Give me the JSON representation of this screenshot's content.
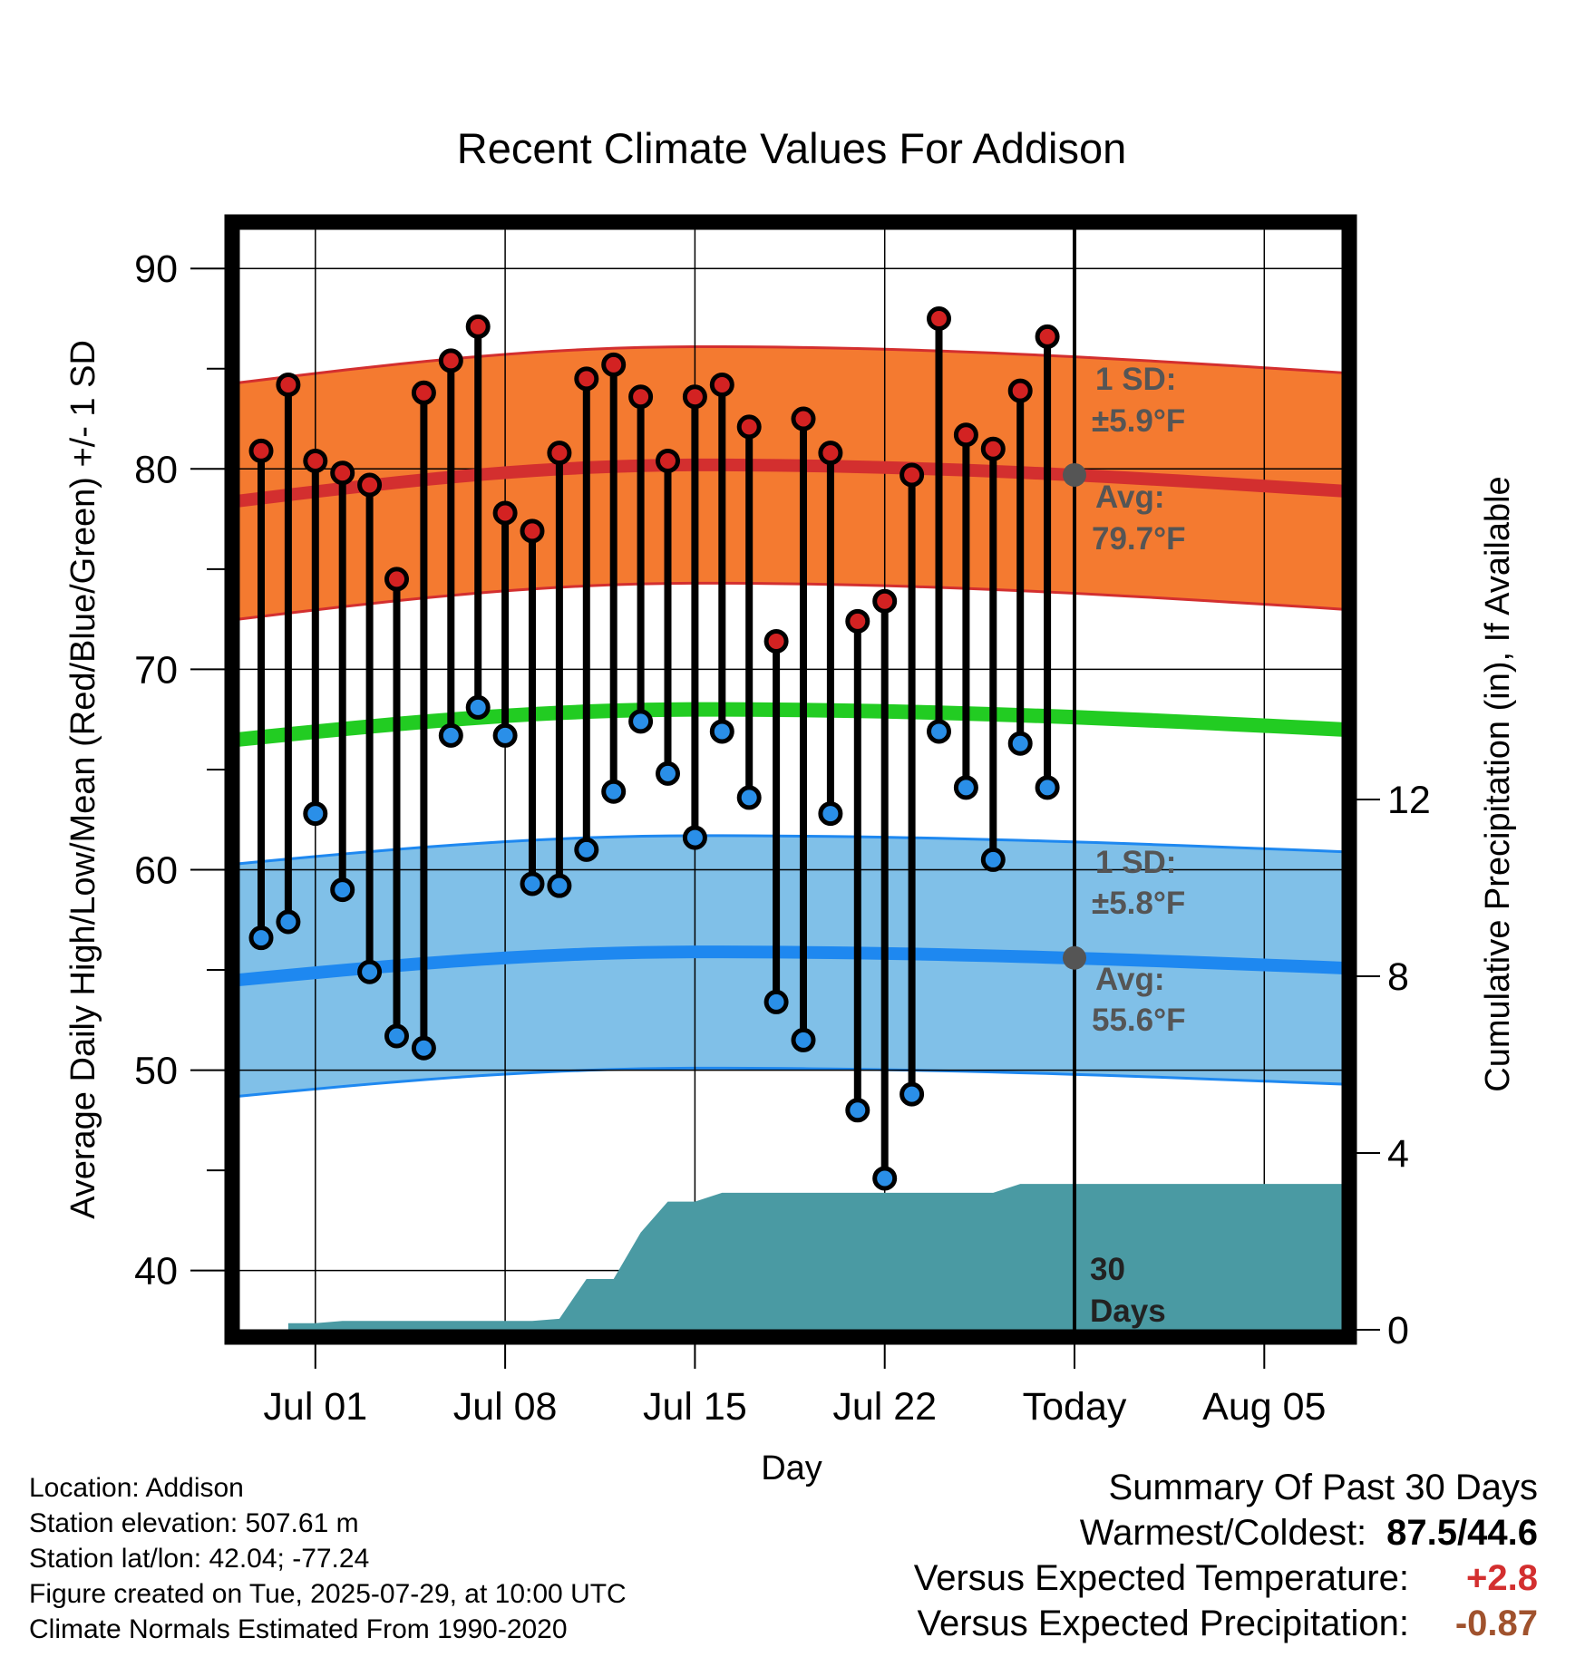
{
  "chart_data": {
    "type": "line",
    "title": "Recent Climate Values For Addison",
    "xlabel": "Day",
    "ylabel": "Average Daily High/Low/Mean (Red/Blue/Green) +/- 1 SD",
    "y2label": "Cumulative Precipitation (in), If Available",
    "x_ticks": [
      "Jul 01",
      "Jul 08",
      "Jul 15",
      "Jul 22",
      "Today",
      "Aug 05"
    ],
    "ylim": [
      37,
      92
    ],
    "yticks": [
      40,
      50,
      60,
      70,
      80,
      90
    ],
    "y2lim": [
      0,
      30
    ],
    "y2ticks": [
      0,
      4,
      8,
      12
    ],
    "grid": true,
    "days": [
      "Jun 29",
      "Jun 30",
      "Jul 01",
      "Jul 02",
      "Jul 03",
      "Jul 04",
      "Jul 05",
      "Jul 06",
      "Jul 07",
      "Jul 08",
      "Jul 09",
      "Jul 10",
      "Jul 11",
      "Jul 12",
      "Jul 13",
      "Jul 14",
      "Jul 15",
      "Jul 16",
      "Jul 17",
      "Jul 18",
      "Jul 19",
      "Jul 20",
      "Jul 21",
      "Jul 22",
      "Jul 23",
      "Jul 24",
      "Jul 25",
      "Jul 26",
      "Jul 27",
      "Jul 28"
    ],
    "highs": [
      80.9,
      84.2,
      80.4,
      79.8,
      79.2,
      74.5,
      83.8,
      85.4,
      87.1,
      77.8,
      76.9,
      80.8,
      84.5,
      85.2,
      83.6,
      80.4,
      83.6,
      84.2,
      82.1,
      71.4,
      82.5,
      80.8,
      72.4,
      73.4,
      79.7,
      87.5,
      81.7,
      81.0,
      83.9,
      86.6
    ],
    "lows": [
      56.6,
      57.4,
      62.8,
      59.0,
      54.9,
      51.7,
      51.1,
      66.7,
      68.1,
      66.7,
      59.3,
      59.2,
      61.0,
      63.9,
      67.4,
      64.8,
      61.6,
      66.9,
      63.6,
      53.4,
      51.5,
      62.8,
      48.0,
      44.6,
      48.8,
      66.9,
      64.1,
      60.5,
      66.3,
      64.1
    ],
    "normal_high": {
      "start": 78.4,
      "peak": 80.2,
      "end": 78.9
    },
    "normal_low": {
      "start": 54.5,
      "peak": 55.9,
      "end": 55.1
    },
    "normal_mean": {
      "start": 66.5,
      "peak": 68.0,
      "end": 67.0
    },
    "sd_high": 5.9,
    "sd_low": 5.8,
    "cum_precip": [
      0,
      0.15,
      0.15,
      0.2,
      0.2,
      0.2,
      0.2,
      0.2,
      0.2,
      0.2,
      0.2,
      0.25,
      1.15,
      1.15,
      2.2,
      2.9,
      2.9,
      3.1,
      3.1,
      3.1,
      3.1,
      3.1,
      3.1,
      3.1,
      3.1,
      3.1,
      3.1,
      3.1,
      3.3,
      3.3
    ],
    "annotations": {
      "high_sd_label": "1 SD:",
      "high_sd_value": "±5.9°F",
      "high_avg_label": "Avg:",
      "high_avg_value": "79.7°F",
      "low_sd_label": "1 SD:",
      "low_sd_value": "±5.8°F",
      "low_avg_label": "Avg:",
      "low_avg_value": "55.6°F",
      "days_label_1": "30",
      "days_label_2": "Days"
    }
  },
  "colors": {
    "high_band": "#f47a30",
    "high_line": "#d32f2f",
    "low_band": "#80c0e8",
    "low_line": "#1e88f0",
    "mean_line": "#22cc22",
    "precip": "#4a9aa3",
    "high_dot": "#d32222",
    "low_dot": "#2a8fe8",
    "today_dot": "#555555"
  },
  "footer": {
    "location": "Location: Addison",
    "elevation": "Station elevation: 507.61 m",
    "latlon": "Station lat/lon: 42.04; -77.24",
    "created": "Figure created on Tue, 2025-07-29, at 10:00 UTC",
    "normals": "Climate Normals Estimated From 1990-2020"
  },
  "summary": {
    "title": "Summary Of Past 30 Days",
    "warmest_label": "Warmest/Coldest:",
    "warmest_value": "87.5/44.6",
    "temp_label": "Versus Expected Temperature:",
    "temp_value": "+2.8",
    "precip_label": "Versus Expected Precipitation:",
    "precip_value": "-0.87"
  }
}
